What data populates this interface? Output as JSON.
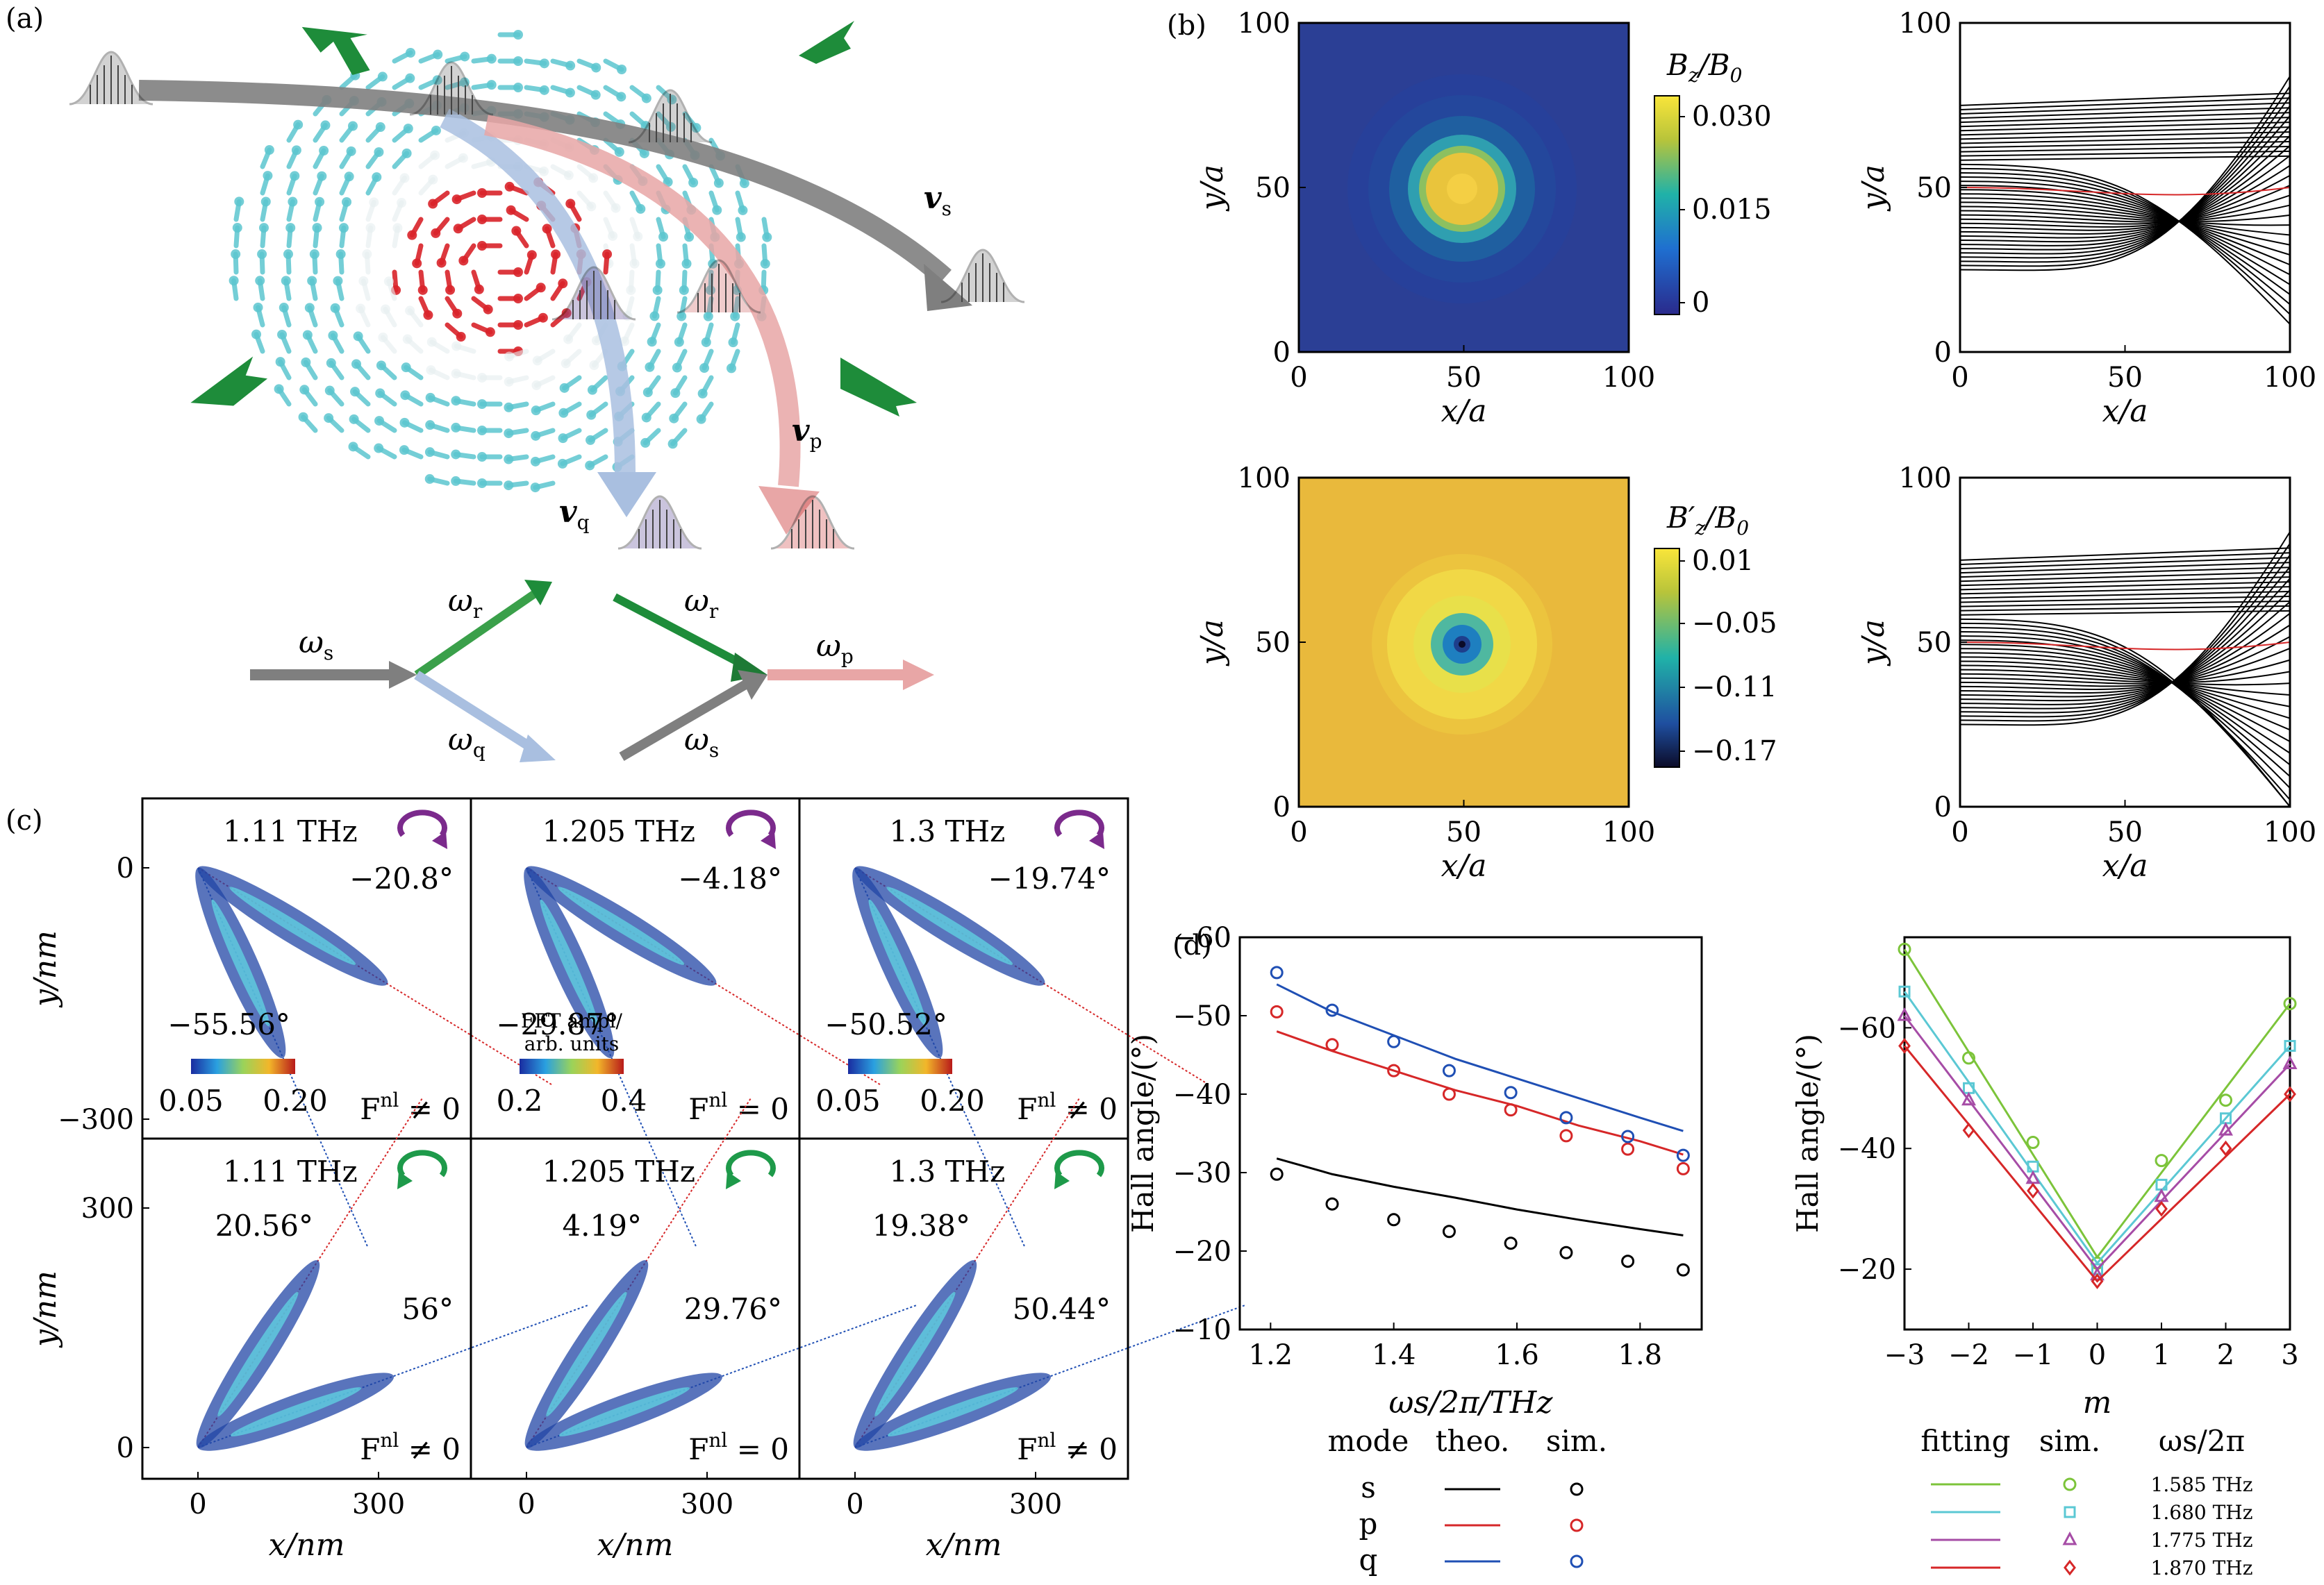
{
  "figure": {
    "panel_labels": [
      "(a)",
      "(b)",
      "(c)",
      "(d)"
    ]
  },
  "panel_a": {
    "vel_labels": [
      {
        "sym": "v",
        "sub": "s"
      },
      {
        "sym": "v",
        "sub": "p"
      },
      {
        "sym": "v",
        "sub": "q"
      }
    ],
    "mixing": {
      "left": {
        "in": {
          "sym": "ω",
          "sub": "s"
        },
        "up": {
          "sym": "ω",
          "sub": "r"
        },
        "down": {
          "sym": "ω",
          "sub": "q"
        }
      },
      "right": {
        "up": {
          "sym": "ω",
          "sub": "r"
        },
        "down": {
          "sym": "ω",
          "sub": "s"
        },
        "out": {
          "sym": "ω",
          "sub": "p"
        }
      }
    },
    "colors": {
      "s": "#7f7f7f",
      "p": "#e8a6a6",
      "q": "#a9bfe0",
      "r": "#1e8c3a",
      "arrow_cyan": "#5cc6cf",
      "arrow_red": "#d9232a"
    }
  },
  "panel_b": {
    "maps": [
      {
        "cbar_label": "Bz/B0",
        "cbar_label_sym": "B",
        "cbar_label_sub": "z",
        "cbar_ticks": [
          "0.030",
          "0.015",
          "0"
        ]
      },
      {
        "cbar_label": "B'z/B0",
        "cbar_label_sym": "B′",
        "cbar_label_sub": "z",
        "cbar_ticks": [
          "0.01",
          "−0.05",
          "−0.11",
          "−0.17"
        ]
      }
    ],
    "x_ticks": [
      "0",
      "50",
      "100"
    ],
    "y_ticks": [
      "0",
      "50",
      "100"
    ],
    "xlabel": "x/a",
    "ylabel": "y/a"
  },
  "panel_c": {
    "subpanels": [
      {
        "freq": "1.11 THz",
        "angles": [
          "−20.8°",
          "−55.56°"
        ],
        "fnl": "≠ 0",
        "cbar": [
          "0.05",
          "0.20"
        ],
        "chirality": "ccw",
        "color": "#7b2a8c"
      },
      {
        "freq": "1.205 THz",
        "angles": [
          "−4.18°",
          "−29.87°"
        ],
        "fnl": "= 0",
        "cbar": [
          "0.2",
          "0.4"
        ],
        "cbar_title": [
          "FFT ampl/",
          "arb. units"
        ],
        "chirality": "ccw",
        "color": "#7b2a8c"
      },
      {
        "freq": "1.3 THz",
        "angles": [
          "−19.74°",
          "−50.52°"
        ],
        "fnl": "≠ 0",
        "cbar": [
          "0.05",
          "0.20"
        ],
        "chirality": "ccw",
        "color": "#7b2a8c"
      },
      {
        "freq": "1.11 THz",
        "angles": [
          "56°",
          "20.56°"
        ],
        "fnl": "≠ 0",
        "chirality": "cw",
        "color": "#1e9a4a"
      },
      {
        "freq": "1.205 THz",
        "angles": [
          "29.76°",
          "4.19°"
        ],
        "fnl": "= 0",
        "chirality": "cw",
        "color": "#1e9a4a"
      },
      {
        "freq": "1.3 THz",
        "angles": [
          "50.44°",
          "19.38°"
        ],
        "fnl": "≠ 0",
        "chirality": "cw",
        "color": "#1e9a4a"
      }
    ],
    "y_ticks_top": [
      "0",
      "−300"
    ],
    "y_ticks_bottom": [
      "300",
      "0"
    ],
    "x_ticks": [
      "0",
      "300"
    ],
    "xlabel": "x/nm",
    "ylabel": "y/nm"
  },
  "chart_data": [
    {
      "type": "line",
      "panel": "(d) left",
      "xlabel": "ωs/2π/THz",
      "ylabel": "Hall angle/(°)",
      "xlim": [
        1.15,
        1.9
      ],
      "ylim": [
        -10,
        -60
      ],
      "x_ticks": [
        "1.2",
        "1.4",
        "1.6",
        "1.8"
      ],
      "y_ticks": [
        "−60",
        "−50",
        "−40",
        "−30",
        "−20",
        "−10"
      ],
      "legend_headers": [
        "mode",
        "theo.",
        "sim."
      ],
      "series": [
        {
          "name": "s",
          "color": "#000000",
          "theory": {
            "x": [
              1.21,
              1.3,
              1.4,
              1.5,
              1.6,
              1.7,
              1.8,
              1.87
            ],
            "y": [
              -31.8,
              -29.8,
              -28.2,
              -26.8,
              -25.3,
              -24.0,
              -22.8,
              -22.0
            ]
          },
          "sim": {
            "x": [
              1.21,
              1.3,
              1.4,
              1.49,
              1.59,
              1.68,
              1.78,
              1.87
            ],
            "y": [
              -29.8,
              -26.0,
              -24.0,
              -22.5,
              -21.0,
              -19.8,
              -18.7,
              -17.6
            ]
          }
        },
        {
          "name": "p",
          "color": "#d62728",
          "theory": {
            "x": [
              1.21,
              1.3,
              1.4,
              1.5,
              1.6,
              1.7,
              1.8,
              1.87
            ],
            "y": [
              -48.0,
              -45.5,
              -43.0,
              -40.5,
              -38.5,
              -36.0,
              -34.0,
              -32.3
            ]
          },
          "sim": {
            "x": [
              1.21,
              1.3,
              1.4,
              1.49,
              1.59,
              1.68,
              1.78,
              1.87
            ],
            "y": [
              -50.5,
              -46.3,
              -43.0,
              -40.0,
              -38.0,
              -34.7,
              -33.0,
              -30.5
            ]
          }
        },
        {
          "name": "q",
          "color": "#1f4fb4",
          "theory": {
            "x": [
              1.21,
              1.3,
              1.4,
              1.5,
              1.6,
              1.7,
              1.8,
              1.87
            ],
            "y": [
              -54.0,
              -50.5,
              -47.5,
              -44.5,
              -42.0,
              -39.5,
              -37.0,
              -35.3
            ]
          },
          "sim": {
            "x": [
              1.21,
              1.3,
              1.4,
              1.49,
              1.59,
              1.68,
              1.78,
              1.87
            ],
            "y": [
              -55.5,
              -50.7,
              -46.7,
              -43.0,
              -40.2,
              -37.0,
              -34.6,
              -32.2
            ]
          }
        }
      ]
    },
    {
      "type": "line",
      "panel": "(d) right",
      "xlabel": "m",
      "ylabel": "Hall angle/(°)",
      "xlim": [
        -3,
        3
      ],
      "ylim": [
        -10,
        -75
      ],
      "x_ticks": [
        "−3",
        "−2",
        "−1",
        "0",
        "1",
        "2",
        "3"
      ],
      "y_ticks": [
        "−60",
        "−40",
        "−20"
      ],
      "legend_headers": [
        "fitting",
        "sim.",
        "ωs/2π"
      ],
      "series": [
        {
          "name": "1.585 THz",
          "color": "#7cc43a",
          "marker": "circle",
          "fit": {
            "x": [
              -3,
              0,
              3
            ],
            "y": [
              -73,
              -22,
              -64
            ]
          },
          "sim": {
            "x": [
              -3,
              -2,
              -1,
              0,
              1,
              2,
              3
            ],
            "y": [
              -73,
              -55,
              -41,
              -21,
              -38,
              -48,
              -64
            ]
          }
        },
        {
          "name": "1.680 THz",
          "color": "#5bc8d4",
          "marker": "square",
          "fit": {
            "x": [
              -3,
              0,
              3
            ],
            "y": [
              -66,
              -21,
              -57
            ]
          },
          "sim": {
            "x": [
              -3,
              -2,
              -1,
              0,
              1,
              2,
              3
            ],
            "y": [
              -66,
              -50,
              -37,
              -20,
              -34,
              -45,
              -57
            ]
          }
        },
        {
          "name": "1.775 THz",
          "color": "#a64ca6",
          "marker": "triangle",
          "fit": {
            "x": [
              -3,
              0,
              3
            ],
            "y": [
              -62,
              -20,
              -54
            ]
          },
          "sim": {
            "x": [
              -3,
              -2,
              -1,
              0,
              1,
              2,
              3
            ],
            "y": [
              -62,
              -48,
              -35,
              -19,
              -32,
              -43,
              -54
            ]
          }
        },
        {
          "name": "1.870 THz",
          "color": "#d62728",
          "marker": "diamond",
          "fit": {
            "x": [
              -3,
              0,
              3
            ],
            "y": [
              -57,
              -18,
              -49
            ]
          },
          "sim": {
            "x": [
              -3,
              -2,
              -1,
              0,
              1,
              2,
              3
            ],
            "y": [
              -57,
              -43,
              -33,
              -18,
              -30,
              -40,
              -49
            ]
          }
        }
      ]
    }
  ]
}
